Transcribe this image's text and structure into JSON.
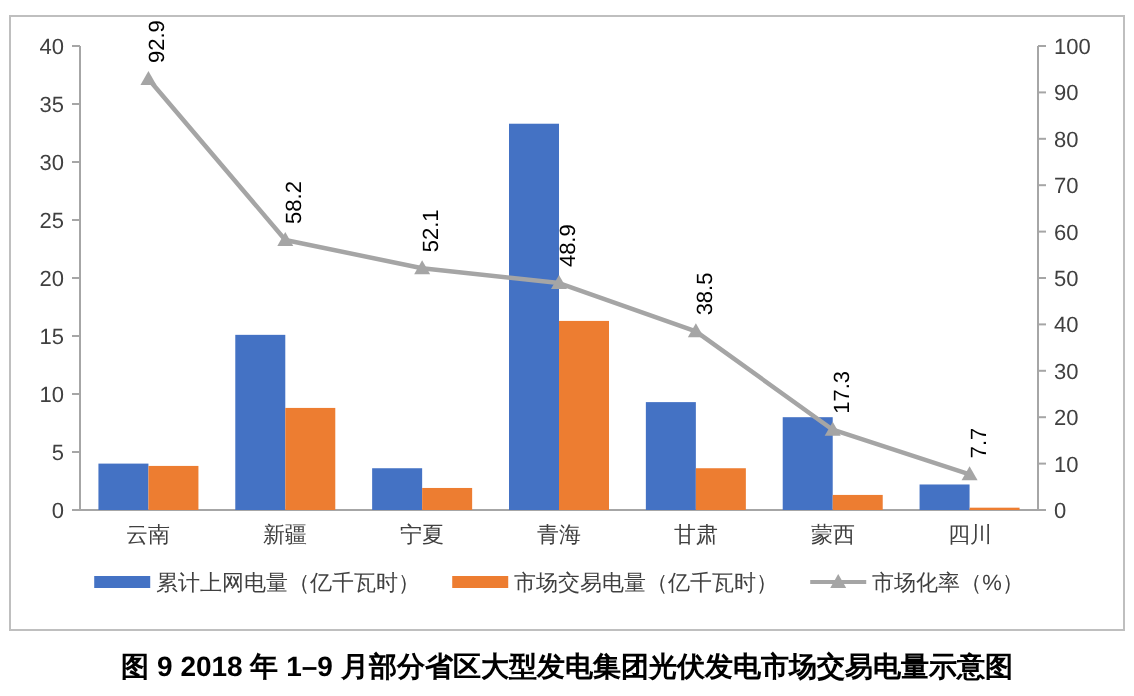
{
  "chart_data": {
    "type": "bar",
    "title": "图 9 2018 年 1–9 月部分省区大型发电集团光伏发电市场交易电量示意图",
    "categories": [
      "云南",
      "新疆",
      "宁夏",
      "青海",
      "甘肃",
      "蒙西",
      "四川"
    ],
    "series": [
      {
        "name": "累计上网电量（亿千瓦时）",
        "color": "#4472c4",
        "values": [
          4.0,
          15.1,
          3.6,
          33.3,
          9.3,
          8.0,
          2.2
        ]
      },
      {
        "name": "市场交易电量（亿千瓦时）",
        "color": "#ed7d31",
        "values": [
          3.8,
          8.8,
          1.9,
          16.3,
          3.6,
          1.3,
          0.2
        ]
      },
      {
        "name": "市场化率（%）",
        "color": "#a5a5a5",
        "type": "line",
        "axis": "y2",
        "marker": "triangle",
        "values": [
          92.9,
          58.2,
          52.1,
          48.9,
          38.5,
          17.3,
          7.7
        ],
        "value_labels": [
          "92.9",
          "58.2",
          "52.1",
          "48.9",
          "38.5",
          "17.3",
          "7.7"
        ]
      }
    ],
    "ylim": [
      0,
      40
    ],
    "yticks": [
      0,
      5,
      10,
      15,
      20,
      25,
      30,
      35,
      40
    ],
    "y2lim": [
      0,
      100
    ],
    "y2ticks": [
      0,
      10,
      20,
      30,
      40,
      50,
      60,
      70,
      80,
      90,
      100
    ],
    "grid": false,
    "legend": "bottom"
  }
}
